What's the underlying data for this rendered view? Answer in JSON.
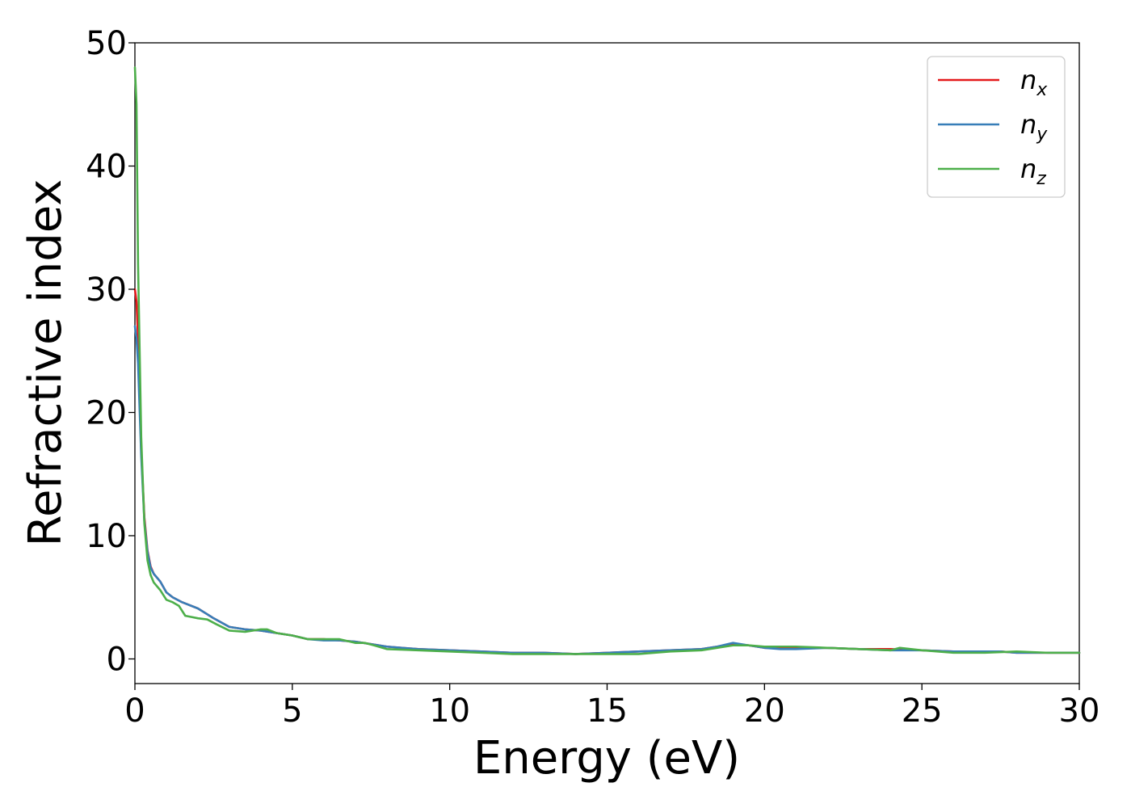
{
  "chart_data": {
    "type": "line",
    "xlabel": "Energy (eV)",
    "ylabel": "Refractive index",
    "xlim": [
      0,
      30
    ],
    "ylim": [
      -2,
      50
    ],
    "xticks": [
      0,
      5,
      10,
      15,
      20,
      25,
      30
    ],
    "xtick_labels": [
      "0",
      "5",
      "10",
      "15",
      "20",
      "25",
      "30"
    ],
    "yticks": [
      0,
      10,
      20,
      30,
      40,
      50
    ],
    "ytick_labels": [
      "0",
      "10",
      "20",
      "30",
      "40",
      "50"
    ],
    "grid": false,
    "legend_position": "top-right",
    "series": [
      {
        "name": "n",
        "subscript": "x",
        "color": "#e41a1c",
        "x": [
          0,
          0.05,
          0.1,
          0.2,
          0.3,
          0.4,
          0.5,
          0.6,
          0.8,
          1.0,
          1.2,
          1.5,
          2.0,
          2.5,
          3.0,
          3.5,
          4.0,
          4.5,
          5.0,
          5.5,
          6.0,
          6.5,
          7.0,
          7.5,
          8.0,
          9.0,
          10.0,
          11.0,
          12.0,
          13.0,
          14.0,
          15.0,
          16.0,
          17.0,
          18.0,
          18.5,
          19.0,
          19.5,
          20.0,
          20.5,
          21.0,
          22.0,
          23.0,
          24.0,
          25.0,
          26.0,
          27.0,
          27.5,
          28.0,
          29.0,
          30.0
        ],
        "values": [
          30.0,
          29.0,
          26.0,
          17.0,
          11.5,
          8.8,
          7.5,
          6.9,
          6.3,
          5.4,
          5.0,
          4.6,
          4.1,
          3.3,
          2.6,
          2.4,
          2.3,
          2.1,
          1.9,
          1.6,
          1.6,
          1.5,
          1.4,
          1.2,
          1.0,
          0.8,
          0.7,
          0.6,
          0.5,
          0.5,
          0.4,
          0.5,
          0.6,
          0.7,
          0.8,
          1.0,
          1.2,
          1.1,
          0.9,
          0.9,
          0.9,
          0.9,
          0.8,
          0.8,
          0.7,
          0.6,
          0.6,
          0.6,
          0.5,
          0.5,
          0.5
        ]
      },
      {
        "name": "n",
        "subscript": "y",
        "color": "#377eb8",
        "x": [
          0,
          0.05,
          0.1,
          0.2,
          0.3,
          0.4,
          0.5,
          0.6,
          0.8,
          1.0,
          1.2,
          1.5,
          2.0,
          2.5,
          3.0,
          3.5,
          4.0,
          4.5,
          5.0,
          5.5,
          6.0,
          6.5,
          7.0,
          7.5,
          8.0,
          9.0,
          10.0,
          11.0,
          12.0,
          13.0,
          14.0,
          15.0,
          16.0,
          17.0,
          18.0,
          18.5,
          19.0,
          19.5,
          20.0,
          20.5,
          21.0,
          22.0,
          23.0,
          24.0,
          25.0,
          26.0,
          27.0,
          27.5,
          28.0,
          29.0,
          30.0
        ],
        "values": [
          27.0,
          26.0,
          24.0,
          16.5,
          11.2,
          8.7,
          7.4,
          6.9,
          6.3,
          5.4,
          5.0,
          4.6,
          4.1,
          3.3,
          2.6,
          2.4,
          2.3,
          2.1,
          1.9,
          1.6,
          1.5,
          1.5,
          1.4,
          1.2,
          1.0,
          0.8,
          0.7,
          0.6,
          0.5,
          0.5,
          0.4,
          0.5,
          0.6,
          0.7,
          0.8,
          1.0,
          1.3,
          1.1,
          0.9,
          0.8,
          0.8,
          0.9,
          0.8,
          0.7,
          0.7,
          0.6,
          0.6,
          0.6,
          0.5,
          0.5,
          0.5
        ]
      },
      {
        "name": "n",
        "subscript": "z",
        "color": "#4daf4a",
        "x": [
          0,
          0.05,
          0.1,
          0.2,
          0.3,
          0.4,
          0.5,
          0.6,
          0.8,
          1.0,
          1.2,
          1.4,
          1.6,
          1.8,
          2.0,
          2.3,
          2.6,
          3.0,
          3.5,
          4.0,
          4.2,
          4.5,
          5.0,
          5.5,
          6.0,
          6.5,
          7.0,
          7.3,
          7.6,
          8.0,
          9.0,
          10.0,
          11.0,
          12.0,
          13.0,
          14.0,
          15.0,
          16.0,
          17.0,
          18.0,
          19.0,
          19.5,
          20.0,
          21.0,
          22.0,
          23.0,
          24.0,
          24.3,
          25.0,
          26.0,
          27.0,
          28.0,
          29.0,
          30.0
        ],
        "values": [
          48.0,
          45.0,
          32.0,
          18.0,
          11.0,
          8.0,
          6.8,
          6.2,
          5.6,
          4.8,
          4.6,
          4.3,
          3.5,
          3.4,
          3.3,
          3.2,
          2.8,
          2.3,
          2.2,
          2.4,
          2.4,
          2.1,
          1.9,
          1.6,
          1.6,
          1.6,
          1.3,
          1.3,
          1.1,
          0.8,
          0.7,
          0.6,
          0.5,
          0.4,
          0.4,
          0.4,
          0.4,
          0.4,
          0.6,
          0.7,
          1.1,
          1.1,
          1.0,
          1.0,
          0.9,
          0.8,
          0.7,
          0.9,
          0.7,
          0.5,
          0.5,
          0.6,
          0.5,
          0.5
        ]
      }
    ]
  }
}
